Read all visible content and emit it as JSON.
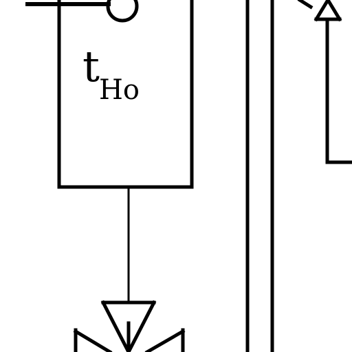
{
  "diagram": {
    "block_label": {
      "main": "t",
      "subscript": "Ho"
    },
    "colors": {
      "line": "#000000",
      "background": "#ffffff"
    },
    "icons": {
      "input_terminal": "circle-terminal-icon",
      "lower_element": "asterisk-star-icon",
      "upper_right_element": "asterisk-star-icon"
    }
  }
}
